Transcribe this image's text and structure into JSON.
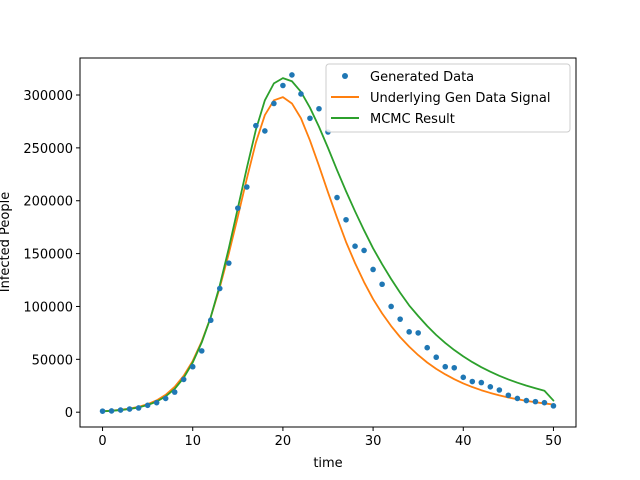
{
  "chart_data": {
    "type": "line",
    "title": "",
    "xlabel": "time",
    "ylabel": "Infected People",
    "xlim": [
      -2.5,
      52.5
    ],
    "ylim": [
      -14000,
      335000
    ],
    "xticks": [
      0,
      10,
      20,
      30,
      40,
      50
    ],
    "xtick_labels": [
      "0",
      "10",
      "20",
      "30",
      "40",
      "50"
    ],
    "yticks": [
      0,
      50000,
      100000,
      150000,
      200000,
      250000,
      300000
    ],
    "ytick_labels": [
      "0",
      "50000",
      "100000",
      "150000",
      "200000",
      "250000",
      "300000"
    ],
    "grid": false,
    "legend_position": "top-right",
    "x": [
      0,
      1,
      2,
      3,
      4,
      5,
      6,
      7,
      8,
      9,
      10,
      11,
      12,
      13,
      14,
      15,
      16,
      17,
      18,
      19,
      20,
      21,
      22,
      23,
      24,
      25,
      26,
      27,
      28,
      29,
      30,
      31,
      32,
      33,
      34,
      35,
      36,
      37,
      38,
      39,
      40,
      41,
      42,
      43,
      44,
      45,
      46,
      47,
      48,
      49,
      50
    ],
    "series": [
      {
        "name": "Generated Data",
        "style": "points",
        "color": "#1f77b4",
        "values": [
          1000,
          1200,
          2000,
          3000,
          4000,
          6500,
          9000,
          13000,
          19000,
          31000,
          43000,
          58000,
          87000,
          117000,
          141000,
          193000,
          213000,
          271000,
          266000,
          292000,
          309000,
          319000,
          301000,
          278000,
          287000,
          265000,
          203000,
          182000,
          157000,
          153000,
          135000,
          121000,
          100000,
          88000,
          76000,
          75000,
          61000,
          52000,
          43000,
          42000,
          33000,
          29000,
          28000,
          24000,
          21000,
          16000,
          13000,
          11000,
          10000,
          9000,
          6000
        ]
      },
      {
        "name": "Underlying Gen Data Signal",
        "style": "line",
        "color": "#ff7f0e",
        "values": [
          1000,
          1500,
          2300,
          3400,
          5100,
          7600,
          11200,
          16500,
          24000,
          34500,
          48500,
          67000,
          90000,
          118000,
          150000,
          185000,
          221000,
          255000,
          281000,
          295000,
          298000,
          292000,
          278000,
          257000,
          233000,
          208000,
          184000,
          161000,
          141000,
          123000,
          107000,
          93500,
          81500,
          71000,
          62000,
          54000,
          47000,
          41000,
          35800,
          31200,
          27200,
          23800,
          20800,
          18200,
          15900,
          13900,
          12200,
          10700,
          9400,
          8300,
          7300
        ]
      },
      {
        "name": "MCMC Result",
        "style": "line",
        "color": "#2ca02c",
        "values": [
          800,
          1300,
          2000,
          3000,
          4500,
          6800,
          10000,
          15000,
          22000,
          32500,
          47000,
          66000,
          90000,
          120000,
          155000,
          193000,
          231000,
          267000,
          295000,
          311000,
          316000,
          313000,
          303000,
          288000,
          270000,
          250000,
          229000,
          209000,
          190000,
          172000,
          155000,
          140000,
          126000,
          113000,
          101000,
          91000,
          81500,
          73000,
          65500,
          58800,
          52800,
          47400,
          42600,
          38300,
          34400,
          31000,
          27900,
          25100,
          22600,
          20300,
          11000
        ]
      }
    ]
  }
}
